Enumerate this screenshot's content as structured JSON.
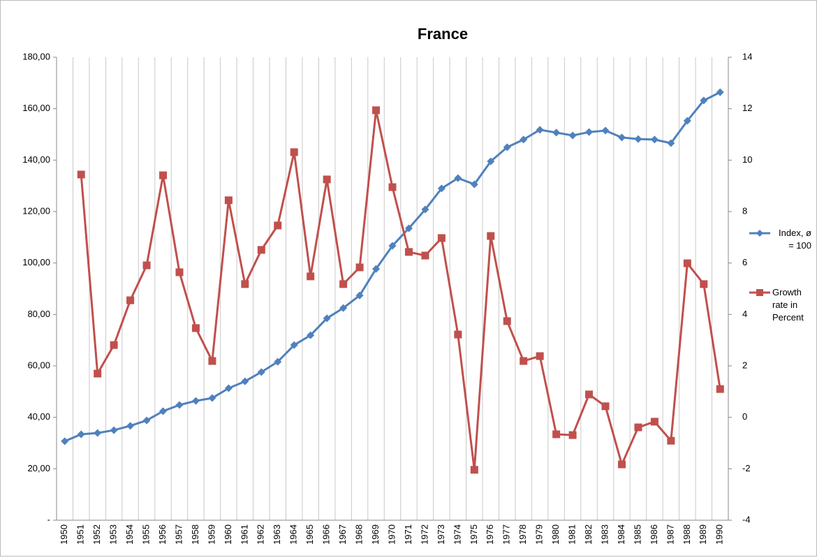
{
  "chart_data": {
    "type": "line",
    "title": "France",
    "categories": [
      "1950",
      "1951",
      "1952",
      "1953",
      "1954",
      "1955",
      "1956",
      "1957",
      "1958",
      "1959",
      "1960",
      "1961",
      "1962",
      "1963",
      "1964",
      "1965",
      "1966",
      "1967",
      "1968",
      "1969",
      "1970",
      "1971",
      "1972",
      "1973",
      "1974",
      "1975",
      "1976",
      "1977",
      "1978",
      "1979",
      "1980",
      "1981",
      "1982",
      "1983",
      "1984",
      "1985",
      "1986",
      "1987",
      "1988",
      "1989",
      "1990"
    ],
    "series": [
      {
        "name": "Index, ø = 100",
        "color": "#4f81bd",
        "marker": "diamond",
        "values": [
          30.7,
          33.4,
          33.9,
          35.0,
          36.7,
          38.8,
          42.4,
          44.8,
          46.4,
          47.5,
          51.3,
          54.0,
          57.6,
          61.6,
          68.1,
          71.9,
          78.5,
          82.5,
          87.4,
          97.7,
          106.7,
          113.5,
          120.8,
          129.0,
          133.0,
          130.6,
          139.5,
          145.0,
          148.0,
          151.8,
          150.7,
          149.6,
          150.9,
          151.5,
          148.8,
          148.2,
          148.0,
          146.6,
          155.3,
          163.2,
          166.4
        ]
      },
      {
        "name": "Growth rate in Percent",
        "color": "#c0504d",
        "marker": "square",
        "axis": "y2",
        "values": [
          null,
          9.44,
          1.7,
          2.81,
          4.55,
          5.91,
          9.41,
          5.64,
          3.47,
          2.19,
          8.44,
          5.18,
          6.51,
          7.46,
          10.31,
          5.48,
          9.25,
          5.18,
          5.83,
          11.94,
          8.95,
          6.43,
          6.29,
          6.97,
          3.22,
          -2.04,
          7.05,
          3.74,
          2.19,
          2.38,
          -0.66,
          -0.69,
          0.89,
          0.43,
          -1.83,
          -0.39,
          -0.17,
          -0.91,
          5.99,
          5.18,
          1.1
        ]
      }
    ],
    "ylim": [
      0,
      180
    ],
    "yticks": [
      {
        "value": 0,
        "label": "-"
      },
      {
        "value": 20,
        "label": "20,00"
      },
      {
        "value": 40,
        "label": "40,00"
      },
      {
        "value": 60,
        "label": "60,00"
      },
      {
        "value": 80,
        "label": "80,00"
      },
      {
        "value": 100,
        "label": "100,00"
      },
      {
        "value": 120,
        "label": "120,00"
      },
      {
        "value": 140,
        "label": "140,00"
      },
      {
        "value": 160,
        "label": "160,00"
      },
      {
        "value": 180,
        "label": "180,00"
      }
    ],
    "y2lim": [
      -4,
      14
    ],
    "y2ticks": [
      -4,
      -2,
      0,
      2,
      4,
      6,
      8,
      10,
      12,
      14
    ],
    "grid": "x",
    "legend": "right"
  }
}
